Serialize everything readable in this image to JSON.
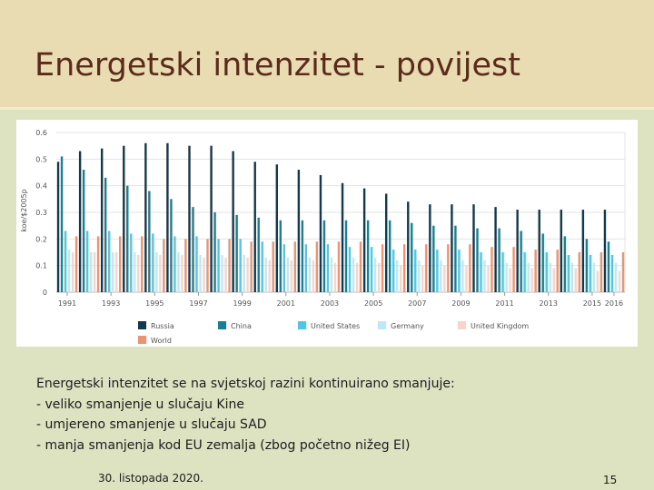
{
  "slide": {
    "title": "Energetski intenzitet - povijest",
    "body_lines": [
      "Energetski intenzitet se na svjetskoj razini kontinuirano smanjuje:",
      "- veliko smanjenje u slučaju Kine",
      "- umjereno smanjenje u slučaju SAD",
      "- manja smanjenja kod EU zemalja (zbog početno nižeg EI)"
    ],
    "date": "30. listopada 2020.",
    "page_number": "15"
  },
  "chart_data": {
    "type": "bar",
    "title": "",
    "xlabel": "",
    "ylabel": "koe/$2005p",
    "ylim": [
      0,
      0.6
    ],
    "yticks": [
      "0",
      "0.1",
      "0.2",
      "0.3",
      "0.4",
      "0.5",
      "0.6"
    ],
    "grid": true,
    "legend_position": "bottom-left",
    "categories": [
      "1991",
      "1992",
      "1993",
      "1994",
      "1995",
      "1996",
      "1997",
      "1998",
      "1999",
      "2000",
      "2001",
      "2002",
      "2003",
      "2004",
      "2005",
      "2006",
      "2007",
      "2008",
      "2009",
      "2010",
      "2011",
      "2012",
      "2013",
      "2014",
      "2015",
      "2016"
    ],
    "xtick_labels": [
      "1991",
      "1993",
      "1995",
      "1997",
      "1999",
      "2001",
      "2003",
      "2005",
      "2007",
      "2009",
      "2011",
      "2013",
      "2015",
      "2016"
    ],
    "series": [
      {
        "name": "Russia",
        "color": "#14384d",
        "values": [
          0.49,
          0.53,
          0.54,
          0.55,
          0.56,
          0.56,
          0.55,
          0.55,
          0.53,
          0.49,
          0.48,
          0.46,
          0.44,
          0.41,
          0.39,
          0.37,
          0.34,
          0.33,
          0.33,
          0.33,
          0.32,
          0.31,
          0.31,
          0.31,
          0.31,
          0.31
        ]
      },
      {
        "name": "China",
        "color": "#1b7f93",
        "values": [
          0.51,
          0.46,
          0.43,
          0.4,
          0.38,
          0.35,
          0.32,
          0.3,
          0.29,
          0.28,
          0.27,
          0.27,
          0.27,
          0.27,
          0.27,
          0.27,
          0.26,
          0.25,
          0.25,
          0.24,
          0.24,
          0.23,
          0.22,
          0.21,
          0.2,
          0.19
        ]
      },
      {
        "name": "United States",
        "color": "#4fc6e6",
        "values": [
          0.23,
          0.23,
          0.23,
          0.22,
          0.22,
          0.21,
          0.21,
          0.2,
          0.2,
          0.19,
          0.18,
          0.18,
          0.18,
          0.17,
          0.17,
          0.16,
          0.16,
          0.16,
          0.16,
          0.15,
          0.15,
          0.15,
          0.15,
          0.14,
          0.14,
          0.14
        ]
      },
      {
        "name": "Germany",
        "color": "#bfe8f5",
        "values": [
          0.16,
          0.15,
          0.15,
          0.15,
          0.15,
          0.15,
          0.14,
          0.14,
          0.14,
          0.13,
          0.13,
          0.13,
          0.13,
          0.13,
          0.13,
          0.12,
          0.12,
          0.12,
          0.12,
          0.12,
          0.11,
          0.11,
          0.11,
          0.11,
          0.11,
          0.11
        ]
      },
      {
        "name": "United Kingdom",
        "color": "#f6d6cc",
        "values": [
          0.15,
          0.15,
          0.15,
          0.14,
          0.14,
          0.14,
          0.13,
          0.13,
          0.13,
          0.12,
          0.12,
          0.12,
          0.11,
          0.11,
          0.11,
          0.1,
          0.1,
          0.1,
          0.1,
          0.1,
          0.09,
          0.09,
          0.09,
          0.09,
          0.08,
          0.08
        ]
      },
      {
        "name": "World",
        "color": "#ec9373",
        "values": [
          0.21,
          0.21,
          0.21,
          0.21,
          0.2,
          0.2,
          0.2,
          0.2,
          0.19,
          0.19,
          0.19,
          0.19,
          0.19,
          0.19,
          0.18,
          0.18,
          0.18,
          0.18,
          0.18,
          0.17,
          0.17,
          0.16,
          0.16,
          0.15,
          0.15,
          0.15
        ]
      }
    ]
  }
}
